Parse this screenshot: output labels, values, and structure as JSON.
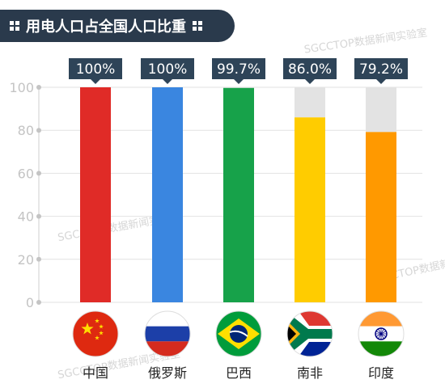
{
  "header": {
    "title": "用电人口占全国人口比重"
  },
  "watermark": {
    "text": "SGCCTOP数据新闻实验室"
  },
  "chart_data": {
    "type": "bar",
    "title": "用电人口占全国人口比重",
    "categories": [
      "中国",
      "俄罗斯",
      "巴西",
      "南非",
      "印度"
    ],
    "values": [
      100,
      100,
      99.7,
      86.0,
      79.2
    ],
    "value_labels": [
      "100%",
      "100%",
      "99.7%",
      "86.0%",
      "79.2%"
    ],
    "yticks": [
      "0",
      "20",
      "40",
      "60",
      "80",
      "100"
    ],
    "ylim": [
      0,
      100
    ],
    "grid": true,
    "colors": [
      "#e02b27",
      "#3a86e0",
      "#17a24a",
      "#ffcc00",
      "#ff9900"
    ],
    "background_bar_color": "#e3e3e3",
    "label_box_color": "#2e4458",
    "flags": [
      "china-flag-icon",
      "russia-flag-icon",
      "brazil-flag-icon",
      "south-africa-flag-icon",
      "india-flag-icon"
    ]
  }
}
